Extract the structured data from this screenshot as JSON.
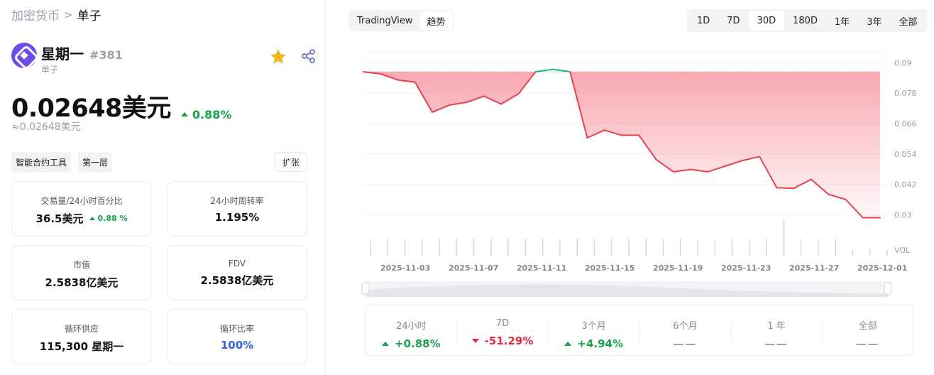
{
  "breadcrumb": {
    "root": "加密货币",
    "separator": ">",
    "current": "单子"
  },
  "coin": {
    "name": "星期一",
    "rank": "#381",
    "symbol": "单子",
    "price": "0.02648美元",
    "change_24h": "0.88%",
    "price_approx": "≈0.02648美元",
    "logo_color": "#6c4ee6"
  },
  "tags": [
    "智能合约工具",
    "第一层"
  ],
  "expand_label": "扩张",
  "stats": [
    {
      "label": "交易量/24小时百分比",
      "value": "36.5美元",
      "sub_change": "0.88 %"
    },
    {
      "label": "24小时周转率",
      "value": "1.195%"
    },
    {
      "label": "市值",
      "value": "2.5838亿美元"
    },
    {
      "label": "FDV",
      "value": "2.5838亿美元"
    },
    {
      "label": "循环供应",
      "value": "115,300 星期一"
    },
    {
      "label": "循环比率",
      "value": "100%"
    }
  ],
  "view_tabs": [
    {
      "label": "TradingView",
      "active": false
    },
    {
      "label": "趋势",
      "active": true
    }
  ],
  "range_tabs": [
    {
      "label": "1D",
      "active": false
    },
    {
      "label": "7D",
      "active": false
    },
    {
      "label": "30D",
      "active": true
    },
    {
      "label": "180D",
      "active": false
    },
    {
      "label": "1年",
      "active": false
    },
    {
      "label": "3年",
      "active": false
    },
    {
      "label": "全部",
      "active": false
    }
  ],
  "chart_data": {
    "type": "area",
    "x_ticks": [
      "2025-11-03",
      "2025-11-07",
      "2025-11-11",
      "2025-11-15",
      "2025-11-19",
      "2025-11-23",
      "2025-11-27",
      "2025-12-01"
    ],
    "y_ticks": [
      "0.09",
      "0.078",
      "0.066",
      "0.054",
      "0.042",
      "0.03"
    ],
    "ylim": [
      0.024,
      0.094
    ],
    "vol_label": "VOL",
    "baseline": 0.0864,
    "x": [
      "2025-11-01",
      "2025-11-02",
      "2025-11-03",
      "2025-11-04",
      "2025-11-05",
      "2025-11-06",
      "2025-11-07",
      "2025-11-08",
      "2025-11-09",
      "2025-11-10",
      "2025-11-11",
      "2025-11-12",
      "2025-11-13",
      "2025-11-14",
      "2025-11-15",
      "2025-11-16",
      "2025-11-17",
      "2025-11-18",
      "2025-11-19",
      "2025-11-20",
      "2025-11-21",
      "2025-11-22",
      "2025-11-23",
      "2025-11-24",
      "2025-11-25",
      "2025-11-26",
      "2025-11-27",
      "2025-11-28",
      "2025-11-29",
      "2025-11-30",
      "2025-12-01"
    ],
    "prices": [
      0.0864,
      0.0856,
      0.0832,
      0.0823,
      0.0705,
      0.0733,
      0.0744,
      0.0768,
      0.0737,
      0.0777,
      0.0864,
      0.0874,
      0.0864,
      0.0604,
      0.0634,
      0.0614,
      0.0614,
      0.0518,
      0.047,
      0.0479,
      0.047,
      0.0492,
      0.0514,
      0.053,
      0.0407,
      0.0405,
      0.044,
      0.0381,
      0.0361,
      0.0289,
      0.0289
    ],
    "volumes": [
      0.45,
      0.45,
      0.45,
      0.45,
      0.45,
      0.45,
      0.45,
      0.45,
      0.45,
      0.45,
      0.45,
      0.45,
      0.45,
      0.45,
      0.45,
      0.45,
      0.45,
      0.45,
      0.45,
      0.45,
      0.45,
      0.45,
      0.45,
      0.45,
      1.0,
      0.45,
      0.45,
      0.45,
      0.15,
      0.18,
      0.18
    ],
    "colors": {
      "down_line": "#e8414e",
      "up_line": "#17b889",
      "area_top": "#f58b95",
      "baseline": "#b8c8c2"
    },
    "grid": true
  },
  "performance": [
    {
      "label": "24小时",
      "value": "+0.88%",
      "direction": "up"
    },
    {
      "label": "7D",
      "value": "-51.29%",
      "direction": "down"
    },
    {
      "label": "3个月",
      "value": "+4.94%",
      "direction": "up"
    },
    {
      "label": "6个月",
      "value": "——",
      "direction": "none"
    },
    {
      "label": "1 年",
      "value": "——",
      "direction": "none"
    },
    {
      "label": "全部",
      "value": "——",
      "direction": "none"
    }
  ]
}
